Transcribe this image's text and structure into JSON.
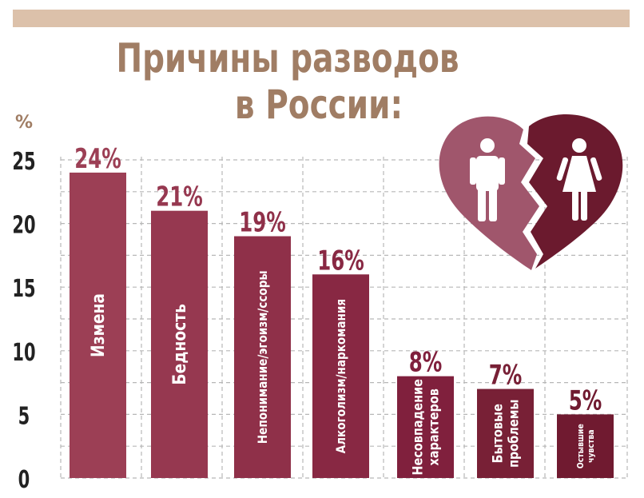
{
  "title": {
    "line1": "Причины разводов",
    "line2": "в России:"
  },
  "chart_data": {
    "type": "bar",
    "title": "Причины разводов в России:",
    "ylabel": "%",
    "ylim": [
      0,
      25
    ],
    "yticks": [
      "0",
      "5",
      "10",
      "15",
      "20",
      "25"
    ],
    "grid": true,
    "categories": [
      "Измена",
      "Бедность",
      "Непонимание/эгоизм/ссоры",
      "Алкоголизм/наркомания",
      "Несовпадение характеров",
      "Бытовые проблемы",
      "Остывшие чувства"
    ],
    "category_lines": [
      [
        "Измена"
      ],
      [
        "Бедность"
      ],
      [
        "Непонимание/эгоизм/ссоры"
      ],
      [
        "Алкоголизм/наркомания"
      ],
      [
        "Несовпадение",
        "характеров"
      ],
      [
        "Бытовые",
        "проблемы"
      ],
      [
        "Остывшие",
        "чувства"
      ]
    ],
    "values": [
      24,
      21,
      19,
      16,
      8,
      7,
      5
    ],
    "value_labels": [
      "24%",
      "21%",
      "19%",
      "16%",
      "8%",
      "7%",
      "5%"
    ],
    "colors": [
      "#9c3f55",
      "#963850",
      "#8f3049",
      "#882843",
      "#80203d",
      "#782036",
      "#701a30"
    ],
    "heart_colors": {
      "left": "#a0566c",
      "right": "#6b1a2e"
    }
  }
}
